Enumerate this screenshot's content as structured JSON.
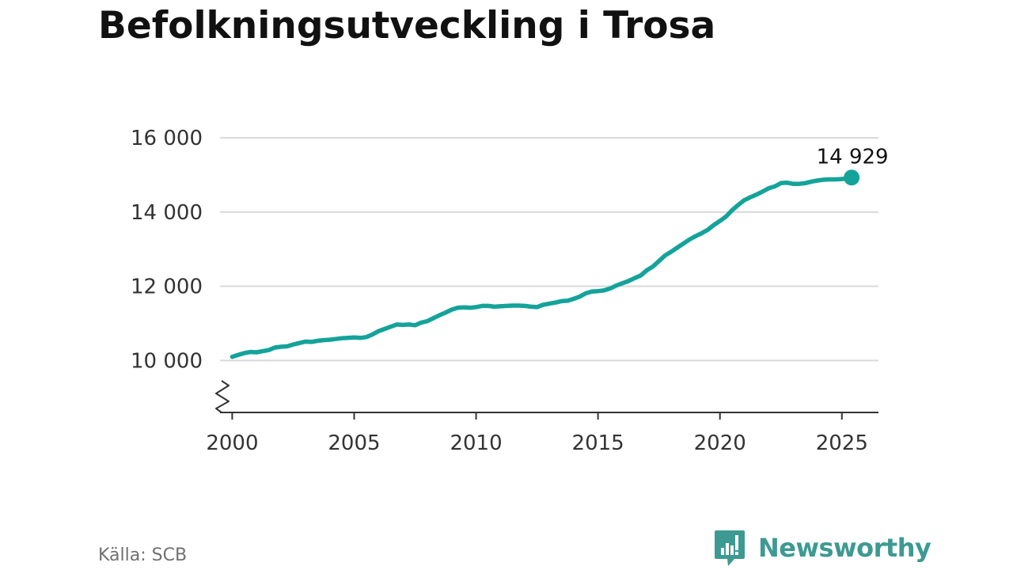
{
  "title": "Befolkningsutveckling i Trosa",
  "source": "Källa: SCB",
  "logo_text": "Newsworthy",
  "colors": {
    "line": "#14a39a",
    "grid": "#d9d9d9",
    "axis": "#333333",
    "tick_text": "#333333",
    "logo": "#3d9a92",
    "source_text": "#707070"
  },
  "chart_data": {
    "type": "line",
    "title": "Befolkningsutveckling i Trosa",
    "xlabel": "",
    "ylabel": "",
    "x_ticks": [
      2000,
      2005,
      2010,
      2015,
      2020,
      2025
    ],
    "x_tick_labels": [
      "2000",
      "2005",
      "2010",
      "2015",
      "2020",
      "2025"
    ],
    "y_ticks": [
      10000,
      12000,
      14000,
      16000
    ],
    "y_tick_labels": [
      "10 000",
      "12 000",
      "14 000",
      "16 000"
    ],
    "xlim": [
      1999.5,
      2026.5
    ],
    "ylim": [
      8600,
      16300
    ],
    "y_axis_break": true,
    "grid": "horizontal",
    "last_value_label": "14 929",
    "series": [
      {
        "x": [
          2000.0,
          2000.25,
          2000.5,
          2000.75,
          2001.0,
          2001.25,
          2001.5,
          2001.75,
          2002.0,
          2002.25,
          2002.5,
          2002.75,
          2003.0,
          2003.25,
          2003.5,
          2003.75,
          2004.0,
          2004.25,
          2004.5,
          2004.75,
          2005.0,
          2005.25,
          2005.5,
          2005.75,
          2006.0,
          2006.25,
          2006.5,
          2006.75,
          2007.0,
          2007.25,
          2007.5,
          2007.75,
          2008.0,
          2008.25,
          2008.5,
          2008.75,
          2009.0,
          2009.25,
          2009.5,
          2009.75,
          2010.0,
          2010.25,
          2010.5,
          2010.75,
          2011.0,
          2011.25,
          2011.5,
          2011.75,
          2012.0,
          2012.25,
          2012.5,
          2012.75,
          2013.0,
          2013.25,
          2013.5,
          2013.75,
          2014.0,
          2014.25,
          2014.5,
          2014.75,
          2015.0,
          2015.25,
          2015.5,
          2015.75,
          2016.0,
          2016.25,
          2016.5,
          2016.75,
          2017.0,
          2017.25,
          2017.5,
          2017.75,
          2018.0,
          2018.25,
          2018.5,
          2018.75,
          2019.0,
          2019.25,
          2019.5,
          2019.75,
          2020.0,
          2020.25,
          2020.5,
          2020.75,
          2021.0,
          2021.25,
          2021.5,
          2021.75,
          2022.0,
          2022.25,
          2022.5,
          2022.75,
          2023.0,
          2023.25,
          2023.5,
          2023.75,
          2024.0,
          2024.25,
          2024.5,
          2024.75,
          2025.0,
          2025.25,
          2025.4
        ],
        "values": [
          10100,
          10150,
          10200,
          10230,
          10220,
          10250,
          10280,
          10350,
          10370,
          10380,
          10430,
          10470,
          10510,
          10500,
          10530,
          10550,
          10560,
          10580,
          10600,
          10610,
          10620,
          10610,
          10630,
          10700,
          10790,
          10850,
          10910,
          10970,
          10960,
          10970,
          10950,
          11020,
          11060,
          11140,
          11220,
          11290,
          11370,
          11420,
          11430,
          11420,
          11440,
          11470,
          11470,
          11450,
          11460,
          11470,
          11480,
          11480,
          11470,
          11450,
          11440,
          11500,
          11530,
          11560,
          11600,
          11610,
          11660,
          11720,
          11810,
          11860,
          11870,
          11890,
          11940,
          12020,
          12080,
          12140,
          12220,
          12290,
          12430,
          12530,
          12680,
          12830,
          12930,
          13040,
          13150,
          13260,
          13350,
          13430,
          13520,
          13650,
          13760,
          13880,
          14050,
          14190,
          14320,
          14400,
          14470,
          14550,
          14640,
          14690,
          14780,
          14790,
          14760,
          14760,
          14780,
          14820,
          14850,
          14870,
          14880,
          14880,
          14890,
          14900,
          14929
        ]
      }
    ]
  }
}
